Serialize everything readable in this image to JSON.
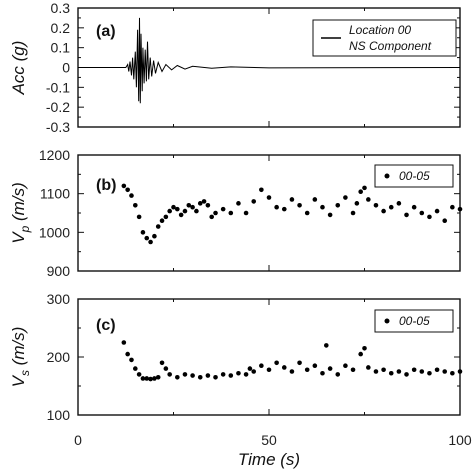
{
  "chart_data": [
    {
      "panel": "(a)",
      "type": "line",
      "ylabel": "Acc (g)",
      "ylim": [
        -0.3,
        0.3
      ],
      "xlim": [
        0,
        100
      ],
      "yticks": [
        "0.3",
        "0.2",
        "0.1",
        "0",
        "-0.1",
        "-0.2",
        "-0.3"
      ],
      "yticks_values": [
        0.3,
        0.2,
        0.1,
        0,
        -0.1,
        -0.2,
        -0.3
      ],
      "legend": [
        "Location 00",
        "NS Component"
      ],
      "legend_placement": "top-right",
      "series": [
        {
          "name": "Location 00 NS Component",
          "x": [
            0,
            12.5,
            13.0,
            13.3,
            13.6,
            14.0,
            14.3,
            14.6,
            15.0,
            15.3,
            15.6,
            15.9,
            16.1,
            16.3,
            16.5,
            16.8,
            17.0,
            17.3,
            17.6,
            17.9,
            18.2,
            18.5,
            18.9,
            19.3,
            19.8,
            20.3,
            21.0,
            22.0,
            23.0,
            24.5,
            26.0,
            28.0,
            30.0,
            35.0,
            40.0,
            50.0,
            100
          ],
          "y": [
            0,
            0,
            0.015,
            -0.02,
            0.03,
            -0.04,
            0.05,
            -0.06,
            0.08,
            -0.1,
            0.19,
            -0.17,
            0.25,
            -0.18,
            0.17,
            -0.12,
            0.1,
            -0.08,
            0.09,
            -0.07,
            0.13,
            -0.06,
            0.05,
            -0.045,
            0.035,
            -0.03,
            0.025,
            -0.02,
            0.015,
            -0.012,
            0.01,
            -0.008,
            0.006,
            -0.004,
            0.003,
            -0.002,
            0
          ]
        }
      ]
    },
    {
      "panel": "(b)",
      "type": "scatter",
      "ylabel": "Vp (m/s)",
      "ylabel_main": "V",
      "ylabel_sub": "p",
      "ylabel_unit": " (m/s)",
      "ylim": [
        900,
        1200
      ],
      "xlim": [
        0,
        100
      ],
      "yticks": [
        "1200",
        "1100",
        "1000",
        "900"
      ],
      "yticks_values": [
        1200,
        1100,
        1000,
        900
      ],
      "legend": [
        "00-05"
      ],
      "legend_placement": "top-right",
      "series": [
        {
          "name": "00-05",
          "x": [
            12,
            13,
            14,
            15,
            16,
            17,
            18,
            19,
            20,
            21,
            22,
            23,
            24,
            25,
            26,
            27,
            28,
            29,
            30,
            31,
            32,
            33,
            34,
            35,
            36,
            38,
            40,
            42,
            44,
            46,
            48,
            50,
            52,
            54,
            56,
            58,
            60,
            62,
            64,
            66,
            68,
            70,
            72,
            73,
            74,
            75,
            76,
            78,
            80,
            82,
            84,
            86,
            88,
            90,
            92,
            94,
            96,
            98,
            100
          ],
          "y": [
            1120,
            1110,
            1095,
            1070,
            1040,
            1000,
            985,
            975,
            990,
            1015,
            1030,
            1040,
            1055,
            1065,
            1060,
            1045,
            1055,
            1070,
            1065,
            1055,
            1075,
            1080,
            1070,
            1040,
            1050,
            1060,
            1050,
            1075,
            1050,
            1080,
            1110,
            1090,
            1065,
            1060,
            1085,
            1070,
            1050,
            1085,
            1065,
            1045,
            1070,
            1090,
            1050,
            1075,
            1105,
            1115,
            1085,
            1070,
            1055,
            1065,
            1075,
            1045,
            1065,
            1050,
            1040,
            1055,
            1030,
            1065,
            1060
          ]
        }
      ]
    },
    {
      "panel": "(c)",
      "type": "scatter",
      "ylabel": "Vs (m/s)",
      "ylabel_main": "V",
      "ylabel_sub": "s",
      "ylabel_unit": " (m/s)",
      "ylim": [
        100,
        300
      ],
      "xlim": [
        0,
        100
      ],
      "yticks": [
        "300",
        "200",
        "100"
      ],
      "yticks_values": [
        300,
        200,
        100
      ],
      "xticks": [
        "0",
        "50",
        "100"
      ],
      "xticks_values": [
        0,
        50,
        100
      ],
      "xlabel": "Time (s)",
      "legend": [
        "00-05"
      ],
      "legend_placement": "top-right",
      "series": [
        {
          "name": "00-05",
          "x": [
            12,
            13,
            14,
            15,
            16,
            17,
            18,
            19,
            20,
            21,
            22,
            23,
            24,
            26,
            28,
            30,
            32,
            34,
            36,
            38,
            40,
            42,
            44,
            45,
            46,
            48,
            50,
            52,
            54,
            56,
            58,
            60,
            62,
            64,
            65,
            66,
            68,
            70,
            72,
            74,
            75,
            76,
            78,
            80,
            82,
            84,
            86,
            88,
            90,
            92,
            94,
            96,
            98,
            100
          ],
          "y": [
            225,
            205,
            195,
            180,
            170,
            163,
            163,
            162,
            163,
            165,
            190,
            180,
            170,
            165,
            170,
            168,
            165,
            168,
            165,
            170,
            168,
            172,
            170,
            180,
            175,
            185,
            178,
            190,
            182,
            175,
            190,
            178,
            185,
            172,
            220,
            180,
            170,
            185,
            178,
            205,
            215,
            182,
            175,
            178,
            172,
            175,
            170,
            178,
            175,
            172,
            178,
            175,
            172,
            175
          ]
        }
      ]
    }
  ]
}
